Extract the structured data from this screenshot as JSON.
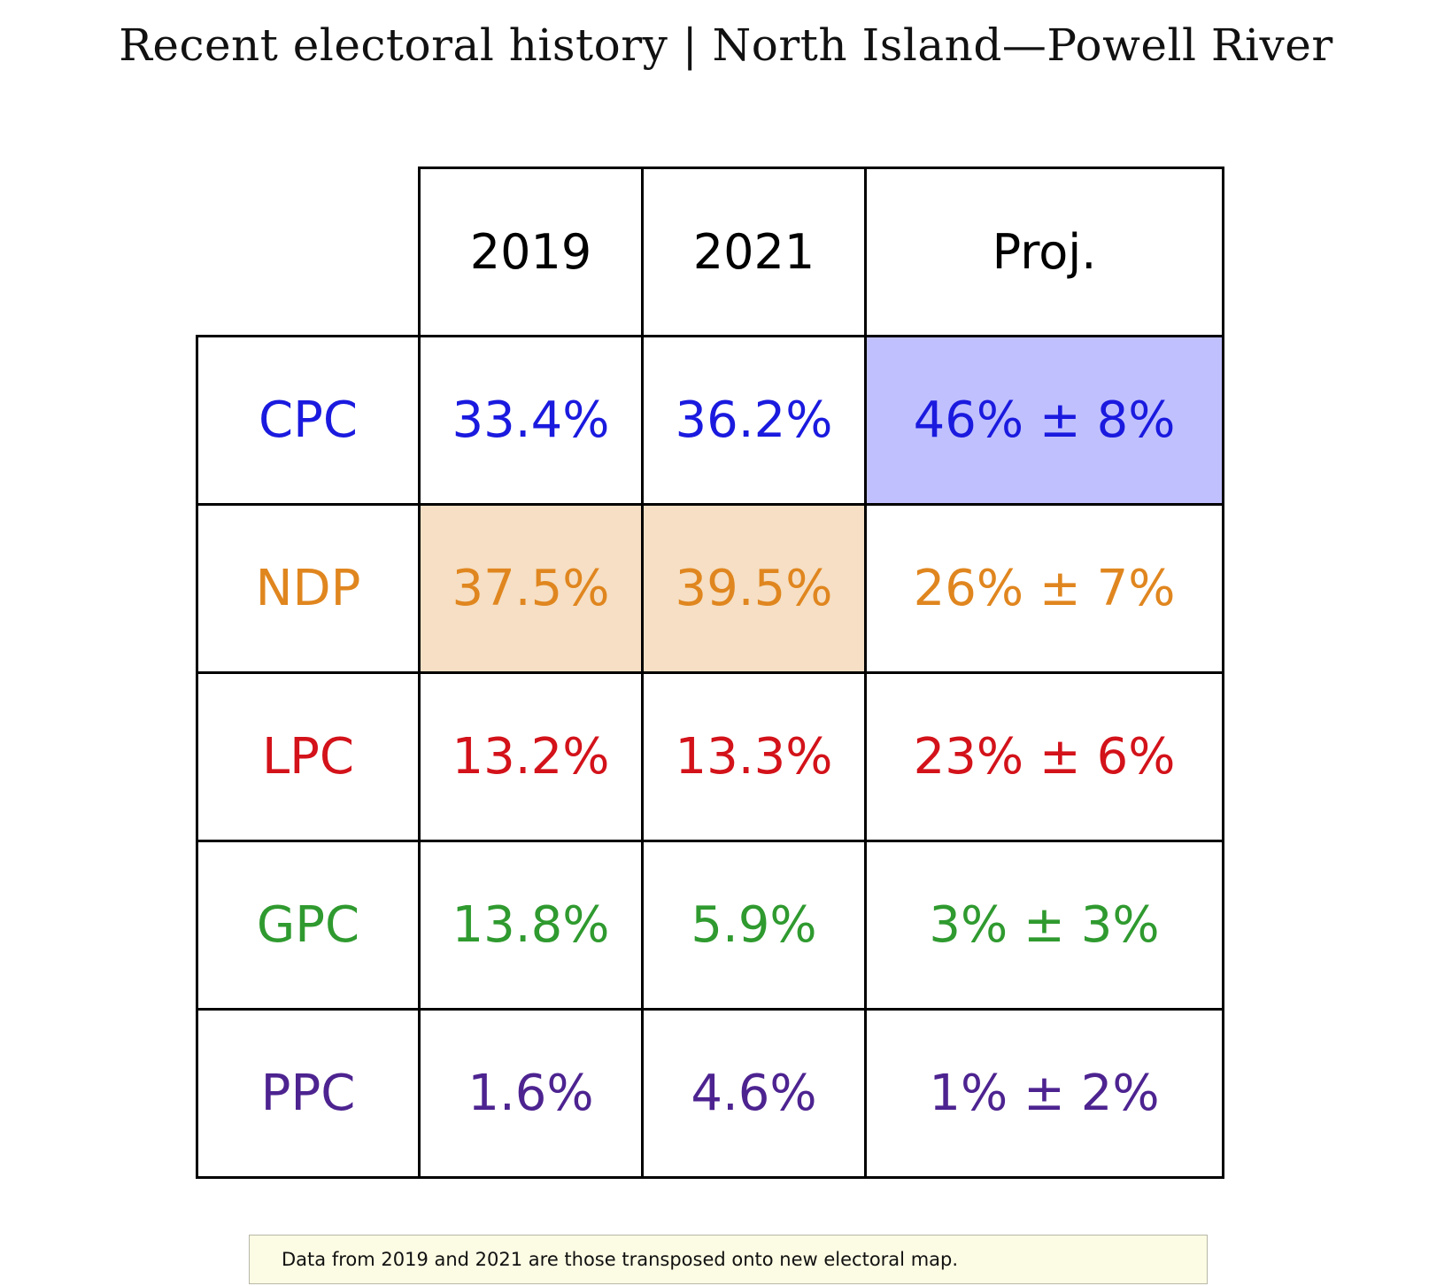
{
  "title": "Recent electoral history | North Island—Powell River",
  "note": "Data from 2019 and 2021 are those transposed onto new electoral map.",
  "chart_data": {
    "type": "table",
    "title": "Recent electoral history | North Island—Powell River",
    "columns": [
      "2019",
      "2021",
      "Proj."
    ],
    "rows": [
      {
        "party": "CPC",
        "color": "#1a1adf",
        "values": [
          "33.4%",
          "36.2%",
          "46% ± 8%"
        ],
        "highlight": [
          false,
          false,
          true
        ],
        "highlight_color": "#c0c0ff"
      },
      {
        "party": "NDP",
        "color": "#e0861f",
        "values": [
          "37.5%",
          "39.5%",
          "26% ± 7%"
        ],
        "highlight": [
          true,
          true,
          false
        ],
        "highlight_color": "#f6dfc4"
      },
      {
        "party": "LPC",
        "color": "#d3121a",
        "values": [
          "13.2%",
          "13.3%",
          "23% ± 6%"
        ],
        "highlight": [
          false,
          false,
          false
        ],
        "highlight_color": ""
      },
      {
        "party": "GPC",
        "color": "#2f9a2f",
        "values": [
          "13.8%",
          "5.9%",
          "3% ± 3%"
        ],
        "highlight": [
          false,
          false,
          false
        ],
        "highlight_color": ""
      },
      {
        "party": "PPC",
        "color": "#4d2390",
        "values": [
          "1.6%",
          "4.6%",
          "1% ± 2%"
        ],
        "highlight": [
          false,
          false,
          false
        ],
        "highlight_color": ""
      }
    ]
  }
}
